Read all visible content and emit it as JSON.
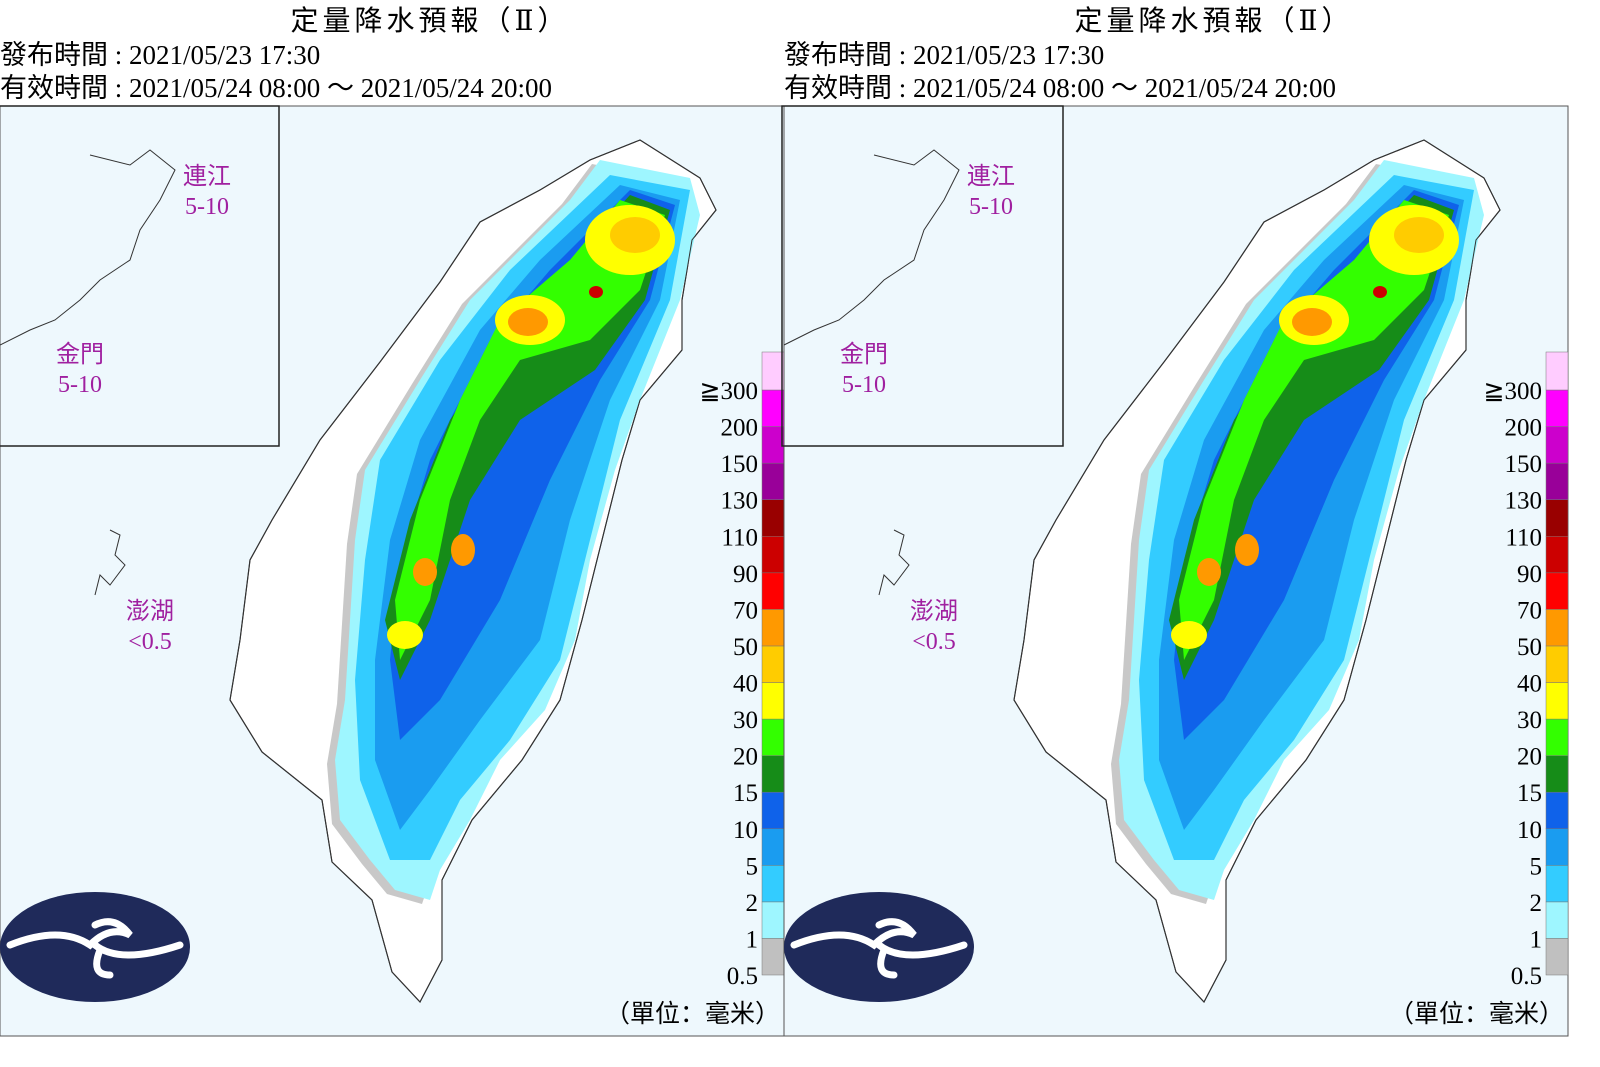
{
  "panels": [
    {
      "title": "定量降水預報（Ⅱ）",
      "issued": "發布時間 : 2021/05/23 17:30",
      "valid": "有效時間 : 2021/05/24 08:00 ～ 2021/05/24 20:00",
      "areas": [
        {
          "name": "連江",
          "amount": "5-10"
        },
        {
          "name": "金門",
          "amount": "5-10"
        },
        {
          "name": "澎湖",
          "amount": "<0.5"
        }
      ],
      "legend": {
        "labels": [
          "0.5",
          "1",
          "2",
          "5",
          "10",
          "15",
          "20",
          "30",
          "40",
          "50",
          "70",
          "90",
          "110",
          "130",
          "150",
          "200",
          "≧300"
        ],
        "colors": [
          "#c0c0c0",
          "#9ef6ff",
          "#33ccff",
          "#1a9cf0",
          "#0f62ea",
          "#168c18",
          "#33ff00",
          "#ffff00",
          "#ffcc00",
          "#ff9900",
          "#ff0000",
          "#cc0000",
          "#990000",
          "#990099",
          "#cc00cc",
          "#ff00ff",
          "#ffccff"
        ]
      },
      "unit": "（單位：毫米）"
    },
    {
      "title": "定量降水預報（Ⅱ）",
      "issued": "發布時間 : 2021/05/23 17:30",
      "valid": "有效時間 : 2021/05/24 08:00 ～ 2021/05/24 20:00",
      "areas": [
        {
          "name": "連江",
          "amount": "5-10"
        },
        {
          "name": "金門",
          "amount": "5-10"
        },
        {
          "name": "澎湖",
          "amount": "<0.5"
        }
      ],
      "legend": {
        "labels": [
          "0.5",
          "1",
          "2",
          "5",
          "10",
          "15",
          "20",
          "30",
          "40",
          "50",
          "70",
          "90",
          "110",
          "130",
          "150",
          "200",
          "≧300"
        ],
        "colors": [
          "#c0c0c0",
          "#9ef6ff",
          "#33ccff",
          "#1a9cf0",
          "#0f62ea",
          "#168c18",
          "#33ff00",
          "#ffff00",
          "#ffcc00",
          "#ff9900",
          "#ff0000",
          "#cc0000",
          "#990000",
          "#990099",
          "#cc00cc",
          "#ff00ff",
          "#ffccff"
        ]
      },
      "unit": "（單位：毫米）"
    }
  ]
}
